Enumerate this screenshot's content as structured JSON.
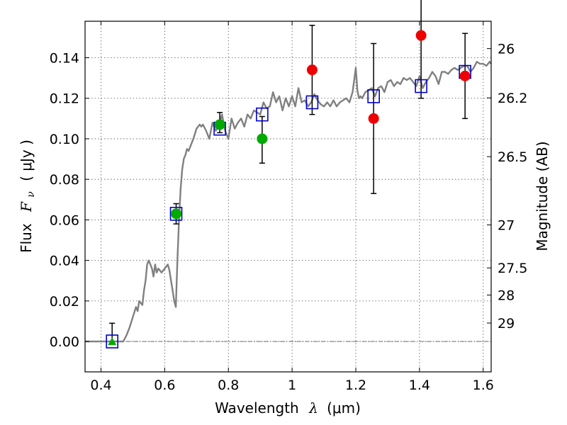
{
  "chart_data": {
    "type": "scatter",
    "xlabel_text": "Wavelength",
    "xlabel_symbol": "λ",
    "xlabel_unit": "(μm)",
    "ylabel_text": "Flux",
    "ylabel_symbol": "F",
    "ylabel_sub": "ν",
    "ylabel_unit": "( μJy )",
    "y2label": "Magnitude (AB)",
    "xlim": [
      0.35,
      1.625
    ],
    "ylim": [
      -0.015,
      0.158
    ],
    "grid": true,
    "x_ticks": [
      0.4,
      0.6,
      0.8,
      1.0,
      1.2,
      1.4,
      1.6
    ],
    "x_tick_labels": [
      "0.4",
      "0.6",
      "0.8",
      "1",
      "1.2",
      "1.4",
      "1.6"
    ],
    "y_ticks": [
      0.0,
      0.02,
      0.04,
      0.06,
      0.08,
      0.1,
      0.12,
      0.14
    ],
    "y_tick_labels": [
      "0.00",
      "0.02",
      "0.04",
      "0.06",
      "0.08",
      "0.10",
      "0.12",
      "0.14"
    ],
    "mag_ticks": [
      {
        "label": "26",
        "flux": 0.1445
      },
      {
        "label": "26.2",
        "flux": 0.1202
      },
      {
        "label": "26.5",
        "flux": 0.0912
      },
      {
        "label": "27",
        "flux": 0.0575
      },
      {
        "label": "27.5",
        "flux": 0.0363
      },
      {
        "label": "28",
        "flux": 0.0229
      },
      {
        "label": "29",
        "flux": 0.0091
      }
    ],
    "colors": {
      "template": "#808080",
      "model": "#0000cc",
      "green": "#00aa00",
      "red": "#ee0000",
      "errorbar": "#000000",
      "zero_line": "#555555",
      "grid": "#555555"
    },
    "template_spectrum": {
      "x": [
        0.35,
        0.46,
        0.47,
        0.48,
        0.49,
        0.5,
        0.51,
        0.515,
        0.52,
        0.53,
        0.535,
        0.54,
        0.545,
        0.55,
        0.56,
        0.565,
        0.57,
        0.575,
        0.58,
        0.59,
        0.6,
        0.61,
        0.615,
        0.62,
        0.625,
        0.63,
        0.635,
        0.64,
        0.645,
        0.65,
        0.655,
        0.66,
        0.665,
        0.67,
        0.675,
        0.68,
        0.69,
        0.7,
        0.705,
        0.71,
        0.715,
        0.72,
        0.73,
        0.74,
        0.75,
        0.76,
        0.77,
        0.78,
        0.79,
        0.8,
        0.81,
        0.82,
        0.83,
        0.84,
        0.85,
        0.86,
        0.87,
        0.88,
        0.89,
        0.9,
        0.91,
        0.92,
        0.93,
        0.94,
        0.95,
        0.96,
        0.97,
        0.98,
        0.99,
        1.0,
        1.01,
        1.02,
        1.03,
        1.04,
        1.05,
        1.06,
        1.07,
        1.08,
        1.09,
        1.1,
        1.11,
        1.12,
        1.13,
        1.14,
        1.15,
        1.16,
        1.17,
        1.18,
        1.19,
        1.2,
        1.205,
        1.21,
        1.215,
        1.22,
        1.23,
        1.24,
        1.25,
        1.26,
        1.27,
        1.28,
        1.29,
        1.3,
        1.31,
        1.32,
        1.33,
        1.34,
        1.35,
        1.36,
        1.37,
        1.38,
        1.39,
        1.4,
        1.41,
        1.42,
        1.43,
        1.44,
        1.45,
        1.46,
        1.47,
        1.48,
        1.49,
        1.5,
        1.51,
        1.52,
        1.53,
        1.54,
        1.55,
        1.56,
        1.57,
        1.58,
        1.59,
        1.6,
        1.61,
        1.62,
        1.625
      ],
      "y": [
        0.0,
        0.0,
        0.0,
        0.003,
        0.007,
        0.012,
        0.017,
        0.015,
        0.02,
        0.018,
        0.025,
        0.03,
        0.038,
        0.04,
        0.036,
        0.032,
        0.038,
        0.034,
        0.036,
        0.034,
        0.036,
        0.038,
        0.035,
        0.03,
        0.025,
        0.02,
        0.017,
        0.04,
        0.06,
        0.075,
        0.085,
        0.09,
        0.092,
        0.095,
        0.094,
        0.096,
        0.1,
        0.105,
        0.106,
        0.107,
        0.106,
        0.107,
        0.104,
        0.1,
        0.108,
        0.104,
        0.106,
        0.112,
        0.104,
        0.1,
        0.11,
        0.105,
        0.108,
        0.11,
        0.106,
        0.112,
        0.11,
        0.114,
        0.113,
        0.112,
        0.118,
        0.115,
        0.116,
        0.123,
        0.118,
        0.121,
        0.114,
        0.12,
        0.116,
        0.121,
        0.116,
        0.125,
        0.118,
        0.119,
        0.116,
        0.118,
        0.122,
        0.119,
        0.117,
        0.116,
        0.118,
        0.116,
        0.119,
        0.116,
        0.118,
        0.119,
        0.12,
        0.118,
        0.123,
        0.135,
        0.124,
        0.12,
        0.121,
        0.12,
        0.123,
        0.124,
        0.125,
        0.121,
        0.125,
        0.126,
        0.123,
        0.128,
        0.129,
        0.126,
        0.128,
        0.127,
        0.13,
        0.129,
        0.13,
        0.128,
        0.126,
        0.131,
        0.125,
        0.128,
        0.13,
        0.133,
        0.131,
        0.127,
        0.133,
        0.133,
        0.132,
        0.134,
        0.135,
        0.134,
        0.135,
        0.136,
        0.136,
        0.133,
        0.135,
        0.138,
        0.137,
        0.137,
        0.136,
        0.138,
        0.137
      ],
      "name": "template"
    },
    "series": [
      {
        "name": "model",
        "marker": "square",
        "x": [
          0.435,
          0.636,
          0.773,
          0.906,
          1.063,
          1.256,
          1.405,
          1.543
        ],
        "y": [
          0.0,
          0.063,
          0.105,
          0.112,
          0.118,
          0.121,
          0.126,
          0.133
        ]
      },
      {
        "name": "observed-green",
        "marker": "circle",
        "x": [
          0.636,
          0.773,
          0.906
        ],
        "y": [
          0.063,
          0.107,
          0.1
        ],
        "yerr_low": [
          0.005,
          0.004,
          0.012
        ],
        "yerr_high": [
          0.005,
          0.006,
          0.011
        ]
      },
      {
        "name": "observed-red",
        "marker": "circle",
        "x": [
          1.063,
          1.256,
          1.405,
          1.543
        ],
        "y": [
          0.134,
          0.11,
          0.151,
          0.131
        ],
        "yerr_low": [
          0.022,
          0.037,
          0.031,
          0.021
        ],
        "yerr_high": [
          0.022,
          0.037,
          0.031,
          0.021
        ]
      },
      {
        "name": "upper-limit-green",
        "marker": "triangle",
        "x": [
          0.435
        ],
        "y": [
          0.0
        ],
        "yerr_low": [
          0.0
        ],
        "yerr_high": [
          0.009
        ]
      }
    ]
  }
}
